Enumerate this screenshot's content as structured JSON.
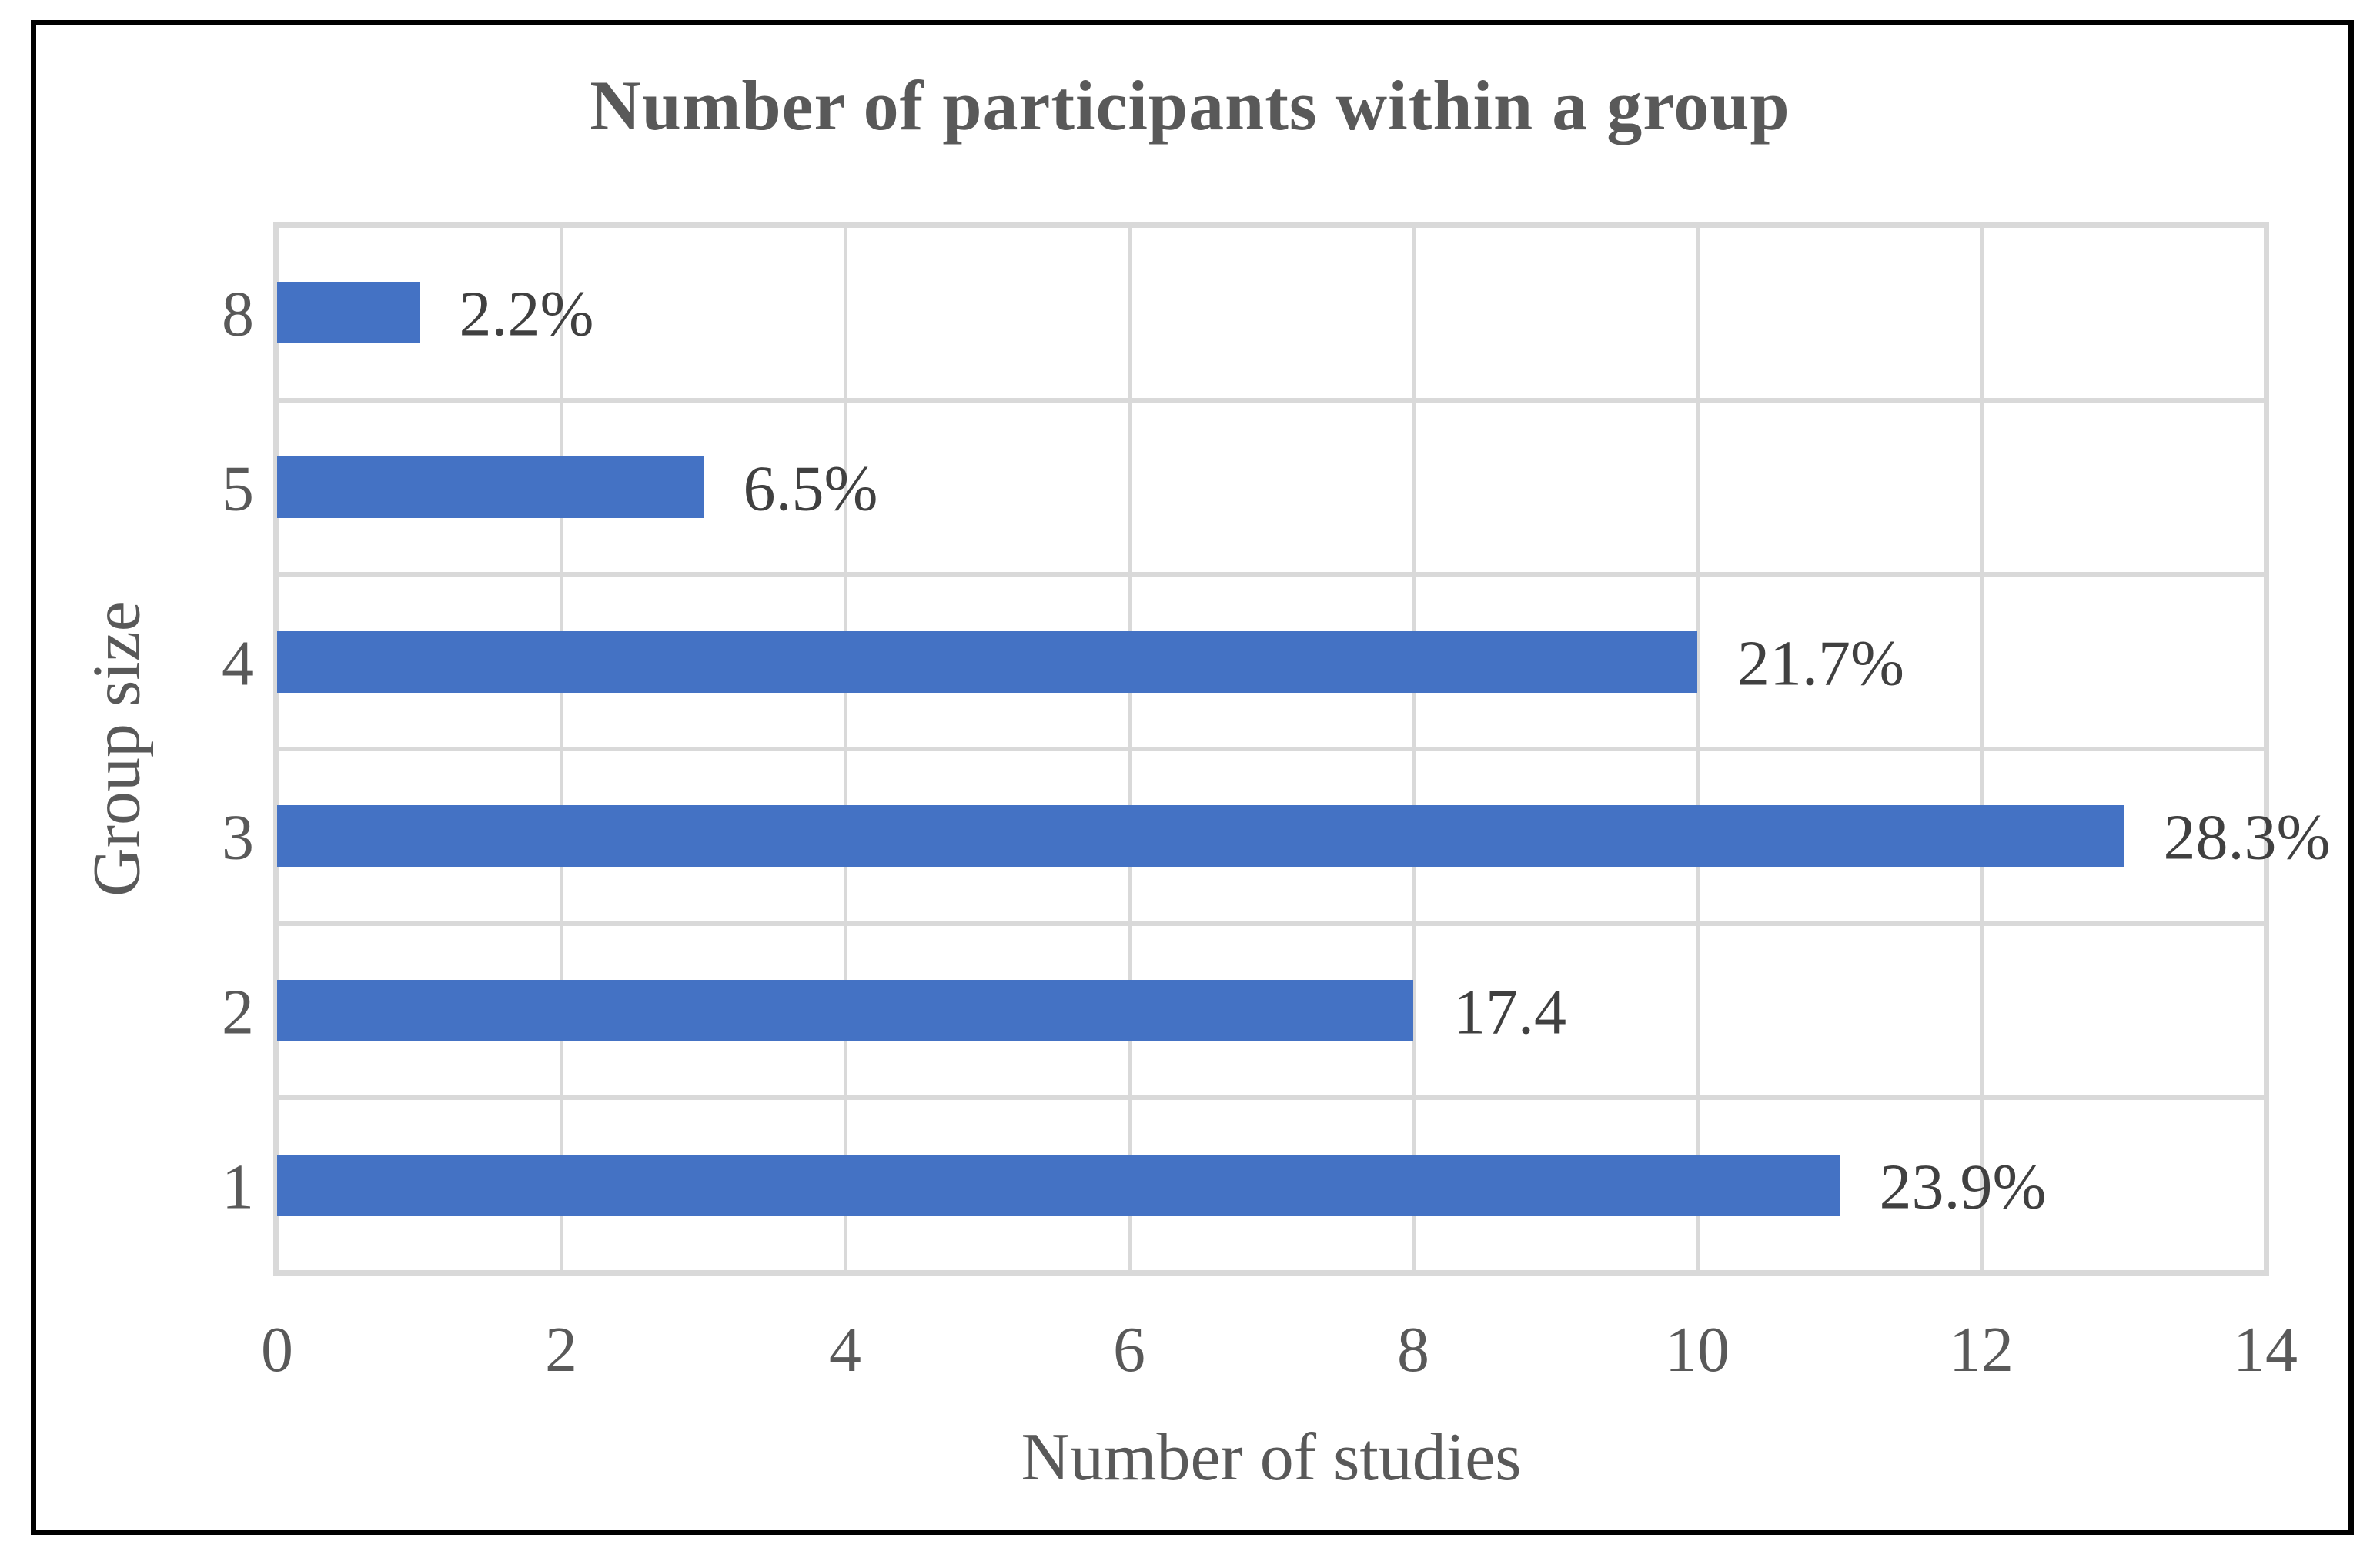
{
  "figure": {
    "title": "Number of participants within a group",
    "frame_color": "#000000",
    "background_color": "#ffffff"
  },
  "chart_data": {
    "type": "bar",
    "orientation": "horizontal",
    "title": "Number of participants within a group",
    "xlabel": "Number of studies",
    "ylabel": "Group size",
    "categories": [
      "8",
      "5",
      "4",
      "3",
      "2",
      "1"
    ],
    "values": [
      1,
      3,
      10,
      13,
      8,
      11
    ],
    "data_labels": [
      "2.2%",
      "6.5%",
      "21.7%",
      "28.3%",
      "17.4",
      "23.9%"
    ],
    "xlim": [
      0,
      14
    ],
    "x_ticks": [
      0,
      2,
      4,
      6,
      8,
      10,
      12,
      14
    ],
    "x_tick_labels": [
      "0",
      "2",
      "4",
      "6",
      "8",
      "10",
      "12",
      "14"
    ],
    "grid": true,
    "legend": false,
    "bar_color": "#4472C4",
    "gridline_color": "#D9D9D9",
    "axis_text_color": "#595959",
    "data_label_color": "#404040",
    "title_color": "#595959"
  }
}
